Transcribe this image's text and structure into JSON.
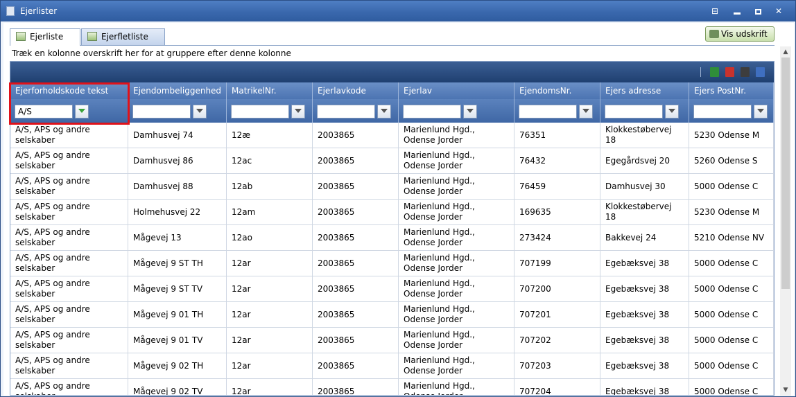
{
  "window": {
    "title": "Ejerlister"
  },
  "tabs": [
    {
      "label": "Ejerliste",
      "active": true
    },
    {
      "label": "Ejerfletliste",
      "active": false
    }
  ],
  "print_button": {
    "label": "Vis udskrift"
  },
  "group_hint": "Træk en kolonne overskrift her for at gruppere efter denne kolonne",
  "toolbar_icons": [
    "excel-export-icon",
    "pdf-export-icon",
    "csv-export-icon",
    "word-export-icon"
  ],
  "columns": [
    {
      "label": "Ejerforholdskode tekst",
      "filter": "A/S"
    },
    {
      "label": "Ejendombeliggenhed",
      "filter": ""
    },
    {
      "label": "MatrikelNr.",
      "filter": ""
    },
    {
      "label": "Ejerlavkode",
      "filter": ""
    },
    {
      "label": "Ejerlav",
      "filter": ""
    },
    {
      "label": "EjendomsNr.",
      "filter": ""
    },
    {
      "label": "Ejers adresse",
      "filter": ""
    },
    {
      "label": "Ejers PostNr.",
      "filter": ""
    }
  ],
  "rows": [
    [
      "A/S, APS og andre selskaber",
      "Damhusvej 74",
      "12æ",
      "2003865",
      "Marienlund Hgd., Odense Jorder",
      "76351",
      "Klokkestøbervej 18",
      "5230 Odense M"
    ],
    [
      "A/S, APS og andre selskaber",
      "Damhusvej 86",
      "12ac",
      "2003865",
      "Marienlund Hgd., Odense Jorder",
      "76432",
      "Egegårdsvej 20",
      "5260 Odense S"
    ],
    [
      "A/S, APS og andre selskaber",
      "Damhusvej 88",
      "12ab",
      "2003865",
      "Marienlund Hgd., Odense Jorder",
      "76459",
      "Damhusvej 30",
      "5000 Odense C"
    ],
    [
      "A/S, APS og andre selskaber",
      "Holmehusvej 22",
      "12am",
      "2003865",
      "Marienlund Hgd., Odense Jorder",
      "169635",
      "Klokkestøbervej 18",
      "5230 Odense M"
    ],
    [
      "A/S, APS og andre selskaber",
      "Mågevej 13",
      "12ao",
      "2003865",
      "Marienlund Hgd., Odense Jorder",
      "273424",
      "Bakkevej 24",
      "5210 Odense NV"
    ],
    [
      "A/S, APS og andre selskaber",
      "Mågevej 9 ST TH",
      "12ar",
      "2003865",
      "Marienlund Hgd., Odense Jorder",
      "707199",
      "Egebæksvej 38",
      "5000 Odense C"
    ],
    [
      "A/S, APS og andre selskaber",
      "Mågevej 9 ST TV",
      "12ar",
      "2003865",
      "Marienlund Hgd., Odense Jorder",
      "707200",
      "Egebæksvej 38",
      "5000 Odense C"
    ],
    [
      "A/S, APS og andre selskaber",
      "Mågevej 9 01 TH",
      "12ar",
      "2003865",
      "Marienlund Hgd., Odense Jorder",
      "707201",
      "Egebæksvej 38",
      "5000 Odense C"
    ],
    [
      "A/S, APS og andre selskaber",
      "Mågevej 9 01 TV",
      "12ar",
      "2003865",
      "Marienlund Hgd., Odense Jorder",
      "707202",
      "Egebæksvej 38",
      "5000 Odense C"
    ],
    [
      "A/S, APS og andre selskaber",
      "Mågevej 9 02 TH",
      "12ar",
      "2003865",
      "Marienlund Hgd., Odense Jorder",
      "707203",
      "Egebæksvej 38",
      "5000 Odense C"
    ],
    [
      "A/S, APS og andre selskaber",
      "Mågevej 9 02 TV",
      "12ar",
      "2003865",
      "Marienlund Hgd., Odense Jorder",
      "707204",
      "Egebæksvej 38",
      "5000 Odense C"
    ]
  ]
}
